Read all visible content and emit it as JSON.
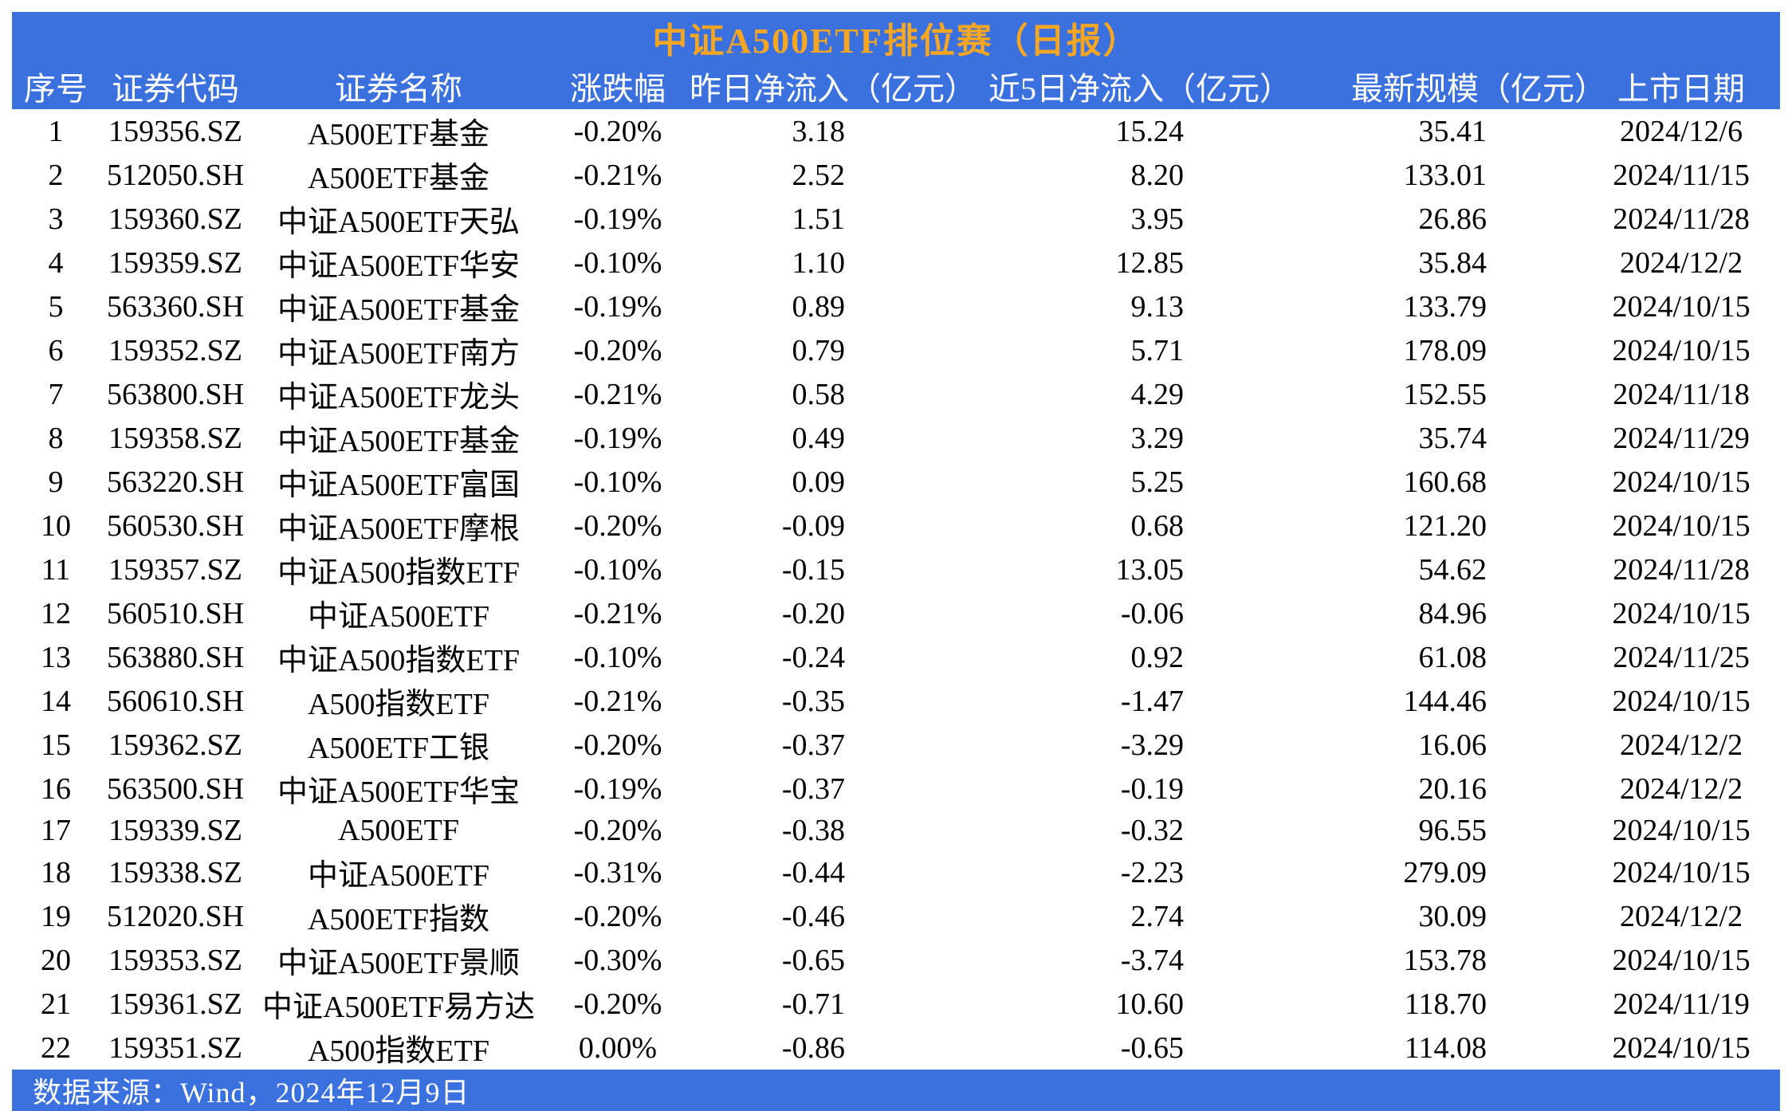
{
  "title": "中证A500ETF排位赛（日报）",
  "colors": {
    "header_bg": "#3B70DF",
    "title_text": "#F5A623",
    "header_text": "#FFFFFF",
    "body_text": "#000000"
  },
  "table": {
    "columns": [
      {
        "key": "index",
        "label": "序号"
      },
      {
        "key": "code",
        "label": "证券代码"
      },
      {
        "key": "name",
        "label": "证券名称"
      },
      {
        "key": "change",
        "label": "涨跌幅"
      },
      {
        "key": "flow_1d",
        "label": "昨日净流入（亿元）"
      },
      {
        "key": "flow_5d",
        "label": "近5日净流入（亿元）"
      },
      {
        "key": "aum",
        "label": "最新规模（亿元）"
      },
      {
        "key": "listing_date",
        "label": "上市日期"
      }
    ],
    "rows": [
      [
        "1",
        "159356.SZ",
        "A500ETF基金",
        "-0.20%",
        "3.18",
        "15.24",
        "35.41",
        "2024/12/6"
      ],
      [
        "2",
        "512050.SH",
        "A500ETF基金",
        "-0.21%",
        "2.52",
        "8.20",
        "133.01",
        "2024/11/15"
      ],
      [
        "3",
        "159360.SZ",
        "中证A500ETF天弘",
        "-0.19%",
        "1.51",
        "3.95",
        "26.86",
        "2024/11/28"
      ],
      [
        "4",
        "159359.SZ",
        "中证A500ETF华安",
        "-0.10%",
        "1.10",
        "12.85",
        "35.84",
        "2024/12/2"
      ],
      [
        "5",
        "563360.SH",
        "中证A500ETF基金",
        "-0.19%",
        "0.89",
        "9.13",
        "133.79",
        "2024/10/15"
      ],
      [
        "6",
        "159352.SZ",
        "中证A500ETF南方",
        "-0.20%",
        "0.79",
        "5.71",
        "178.09",
        "2024/10/15"
      ],
      [
        "7",
        "563800.SH",
        "中证A500ETF龙头",
        "-0.21%",
        "0.58",
        "4.29",
        "152.55",
        "2024/11/18"
      ],
      [
        "8",
        "159358.SZ",
        "中证A500ETF基金",
        "-0.19%",
        "0.49",
        "3.29",
        "35.74",
        "2024/11/29"
      ],
      [
        "9",
        "563220.SH",
        "中证A500ETF富国",
        "-0.10%",
        "0.09",
        "5.25",
        "160.68",
        "2024/10/15"
      ],
      [
        "10",
        "560530.SH",
        "中证A500ETF摩根",
        "-0.20%",
        "-0.09",
        "0.68",
        "121.20",
        "2024/10/15"
      ],
      [
        "11",
        "159357.SZ",
        "中证A500指数ETF",
        "-0.10%",
        "-0.15",
        "13.05",
        "54.62",
        "2024/11/28"
      ],
      [
        "12",
        "560510.SH",
        "中证A500ETF",
        "-0.21%",
        "-0.20",
        "-0.06",
        "84.96",
        "2024/10/15"
      ],
      [
        "13",
        "563880.SH",
        "中证A500指数ETF",
        "-0.10%",
        "-0.24",
        "0.92",
        "61.08",
        "2024/11/25"
      ],
      [
        "14",
        "560610.SH",
        "A500指数ETF",
        "-0.21%",
        "-0.35",
        "-1.47",
        "144.46",
        "2024/10/15"
      ],
      [
        "15",
        "159362.SZ",
        "A500ETF工银",
        "-0.20%",
        "-0.37",
        "-3.29",
        "16.06",
        "2024/12/2"
      ],
      [
        "16",
        "563500.SH",
        "中证A500ETF华宝",
        "-0.19%",
        "-0.37",
        "-0.19",
        "20.16",
        "2024/12/2"
      ],
      [
        "17",
        "159339.SZ",
        "A500ETF",
        "-0.20%",
        "-0.38",
        "-0.32",
        "96.55",
        "2024/10/15"
      ],
      [
        "18",
        "159338.SZ",
        "中证A500ETF",
        "-0.31%",
        "-0.44",
        "-2.23",
        "279.09",
        "2024/10/15"
      ],
      [
        "19",
        "512020.SH",
        "A500ETF指数",
        "-0.20%",
        "-0.46",
        "2.74",
        "30.09",
        "2024/12/2"
      ],
      [
        "20",
        "159353.SZ",
        "中证A500ETF景顺",
        "-0.30%",
        "-0.65",
        "-3.74",
        "153.78",
        "2024/10/15"
      ],
      [
        "21",
        "159361.SZ",
        "中证A500ETF易方达",
        "-0.20%",
        "-0.71",
        "10.60",
        "118.70",
        "2024/11/19"
      ],
      [
        "22",
        "159351.SZ",
        "A500指数ETF",
        "0.00%",
        "-0.86",
        "-0.65",
        "114.08",
        "2024/10/15"
      ]
    ]
  },
  "footer": {
    "source_text": "数据来源：Wind，2024年12月9日"
  }
}
